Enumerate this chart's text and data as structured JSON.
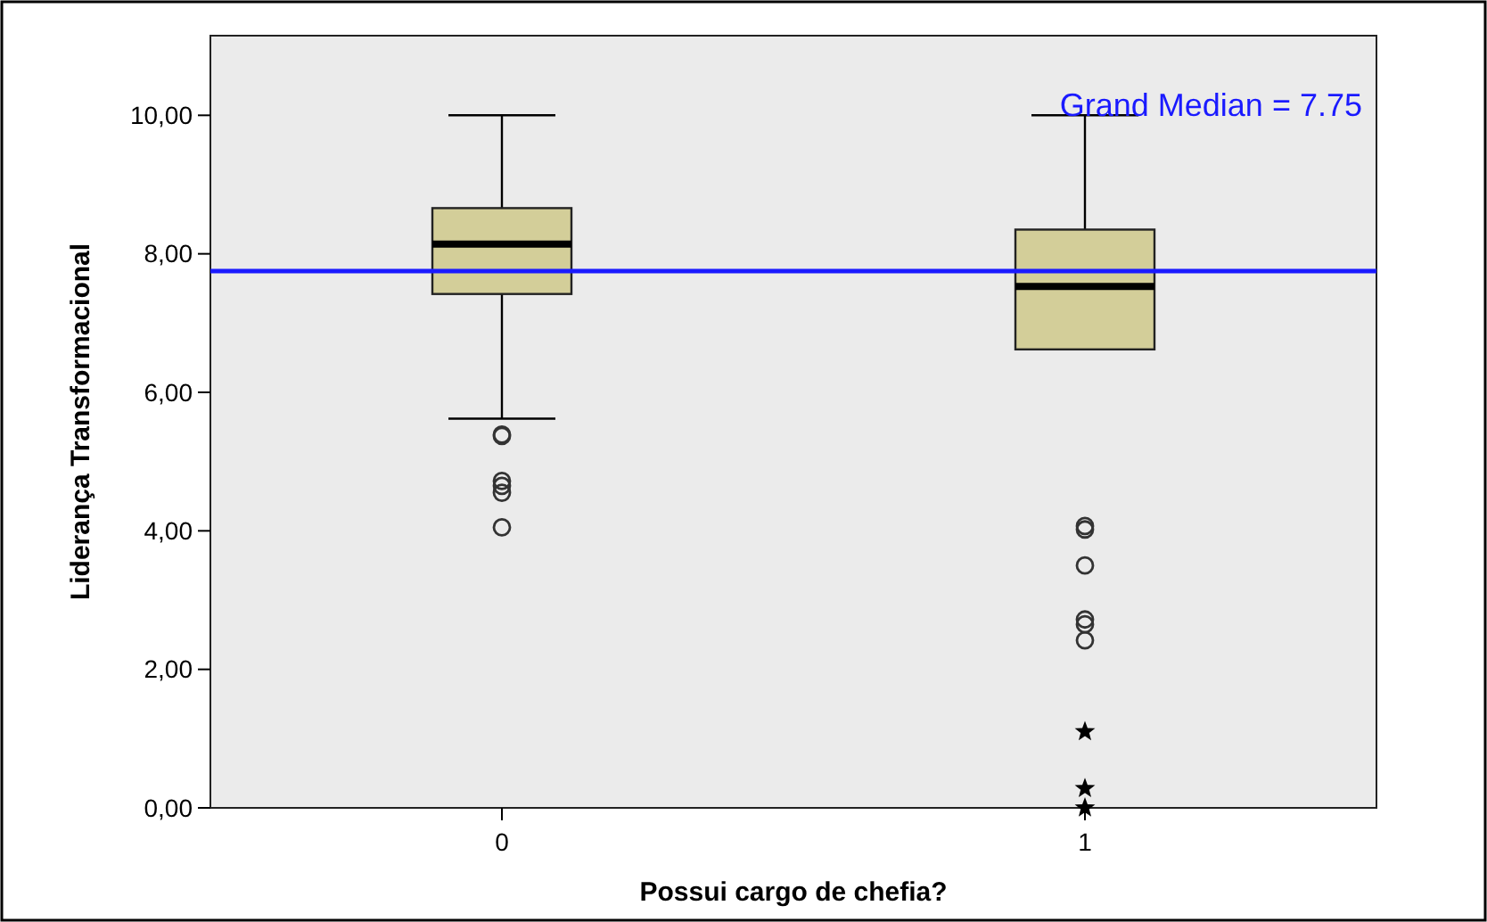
{
  "chart_data": {
    "type": "box",
    "xlabel": "Possui cargo de chefia?",
    "ylabel": "Liderança Transformacional",
    "categories": [
      "0",
      "1"
    ],
    "series": [
      {
        "color": "#d3ce99",
        "boxes": [
          {
            "low": 5.62,
            "q1": 7.42,
            "median": 8.14,
            "q3": 8.66,
            "high": 10,
            "outliers": [
              5.39,
              5.37,
              4.72,
              4.65,
              4.55,
              4.05
            ]
          },
          {
            "low": 6.62,
            "q1": 6.62,
            "median": 7.53,
            "q3": 8.35,
            "high": 10,
            "outliers": [
              4.07,
              4.02,
              3.5,
              2.72,
              2.65,
              2.42
            ]
          }
        ]
      },
      {
        "type": "scatter",
        "marker": "star",
        "color": "#000000",
        "x": [
          "1",
          "1",
          "1"
        ],
        "values": [
          1.1,
          0.28,
          0
        ]
      }
    ],
    "ylim": [
      0,
      11.15
    ],
    "yticks": [
      {
        "value": 0,
        "label": "0,00"
      },
      {
        "value": 2,
        "label": "2,00"
      },
      {
        "value": 4,
        "label": "4,00"
      },
      {
        "value": 6,
        "label": "6,00"
      },
      {
        "value": 8,
        "label": "8,00"
      },
      {
        "value": 10,
        "label": "10,00"
      }
    ],
    "ref_lines": [
      {
        "axis": "y",
        "value": 7.75,
        "label": "Grand Median = 7.75",
        "color": "#1a1aff"
      }
    ],
    "grid": false
  }
}
